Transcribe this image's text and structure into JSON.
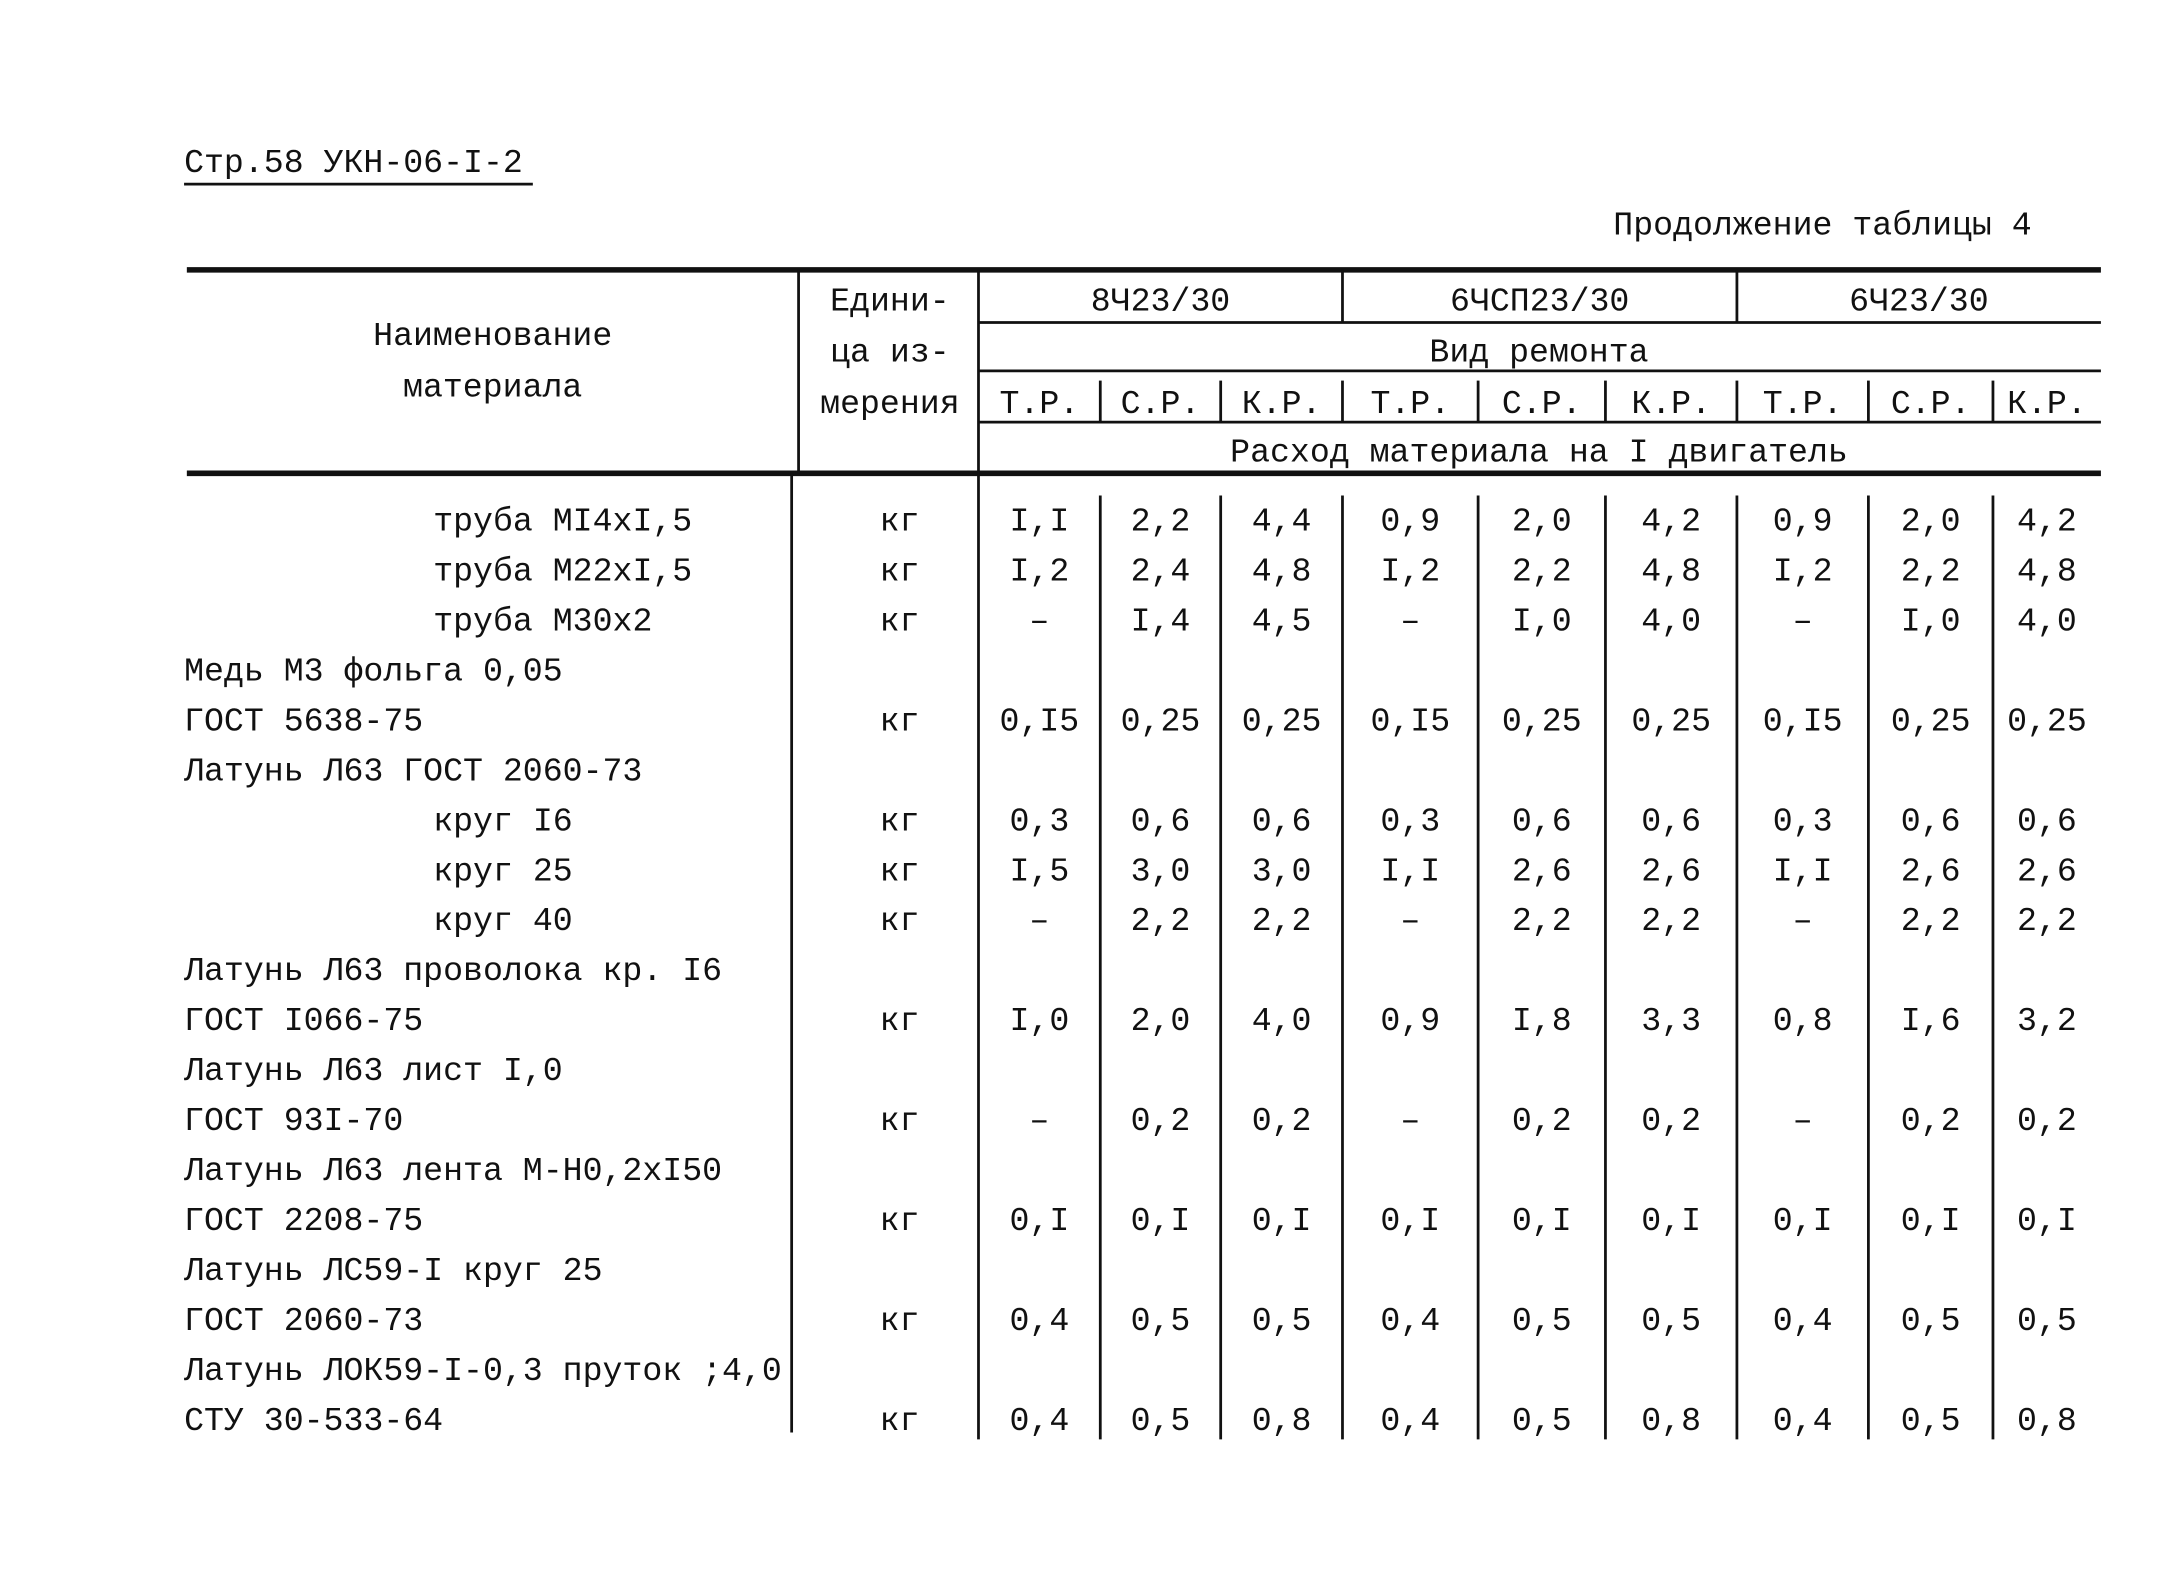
{
  "header": {
    "page_ref": "Стр.58 УКН-06-I-2",
    "continuation": "Продолжение таблицы 4"
  },
  "table": {
    "name_header": [
      "Наименование",
      "материала"
    ],
    "unit_header": [
      "Едини-",
      "ца из-",
      "мерения"
    ],
    "engines": [
      "8Ч23/30",
      "6ЧСП23/30",
      "6Ч23/30"
    ],
    "repair_header": "Вид ремонта",
    "repair_types": [
      "Т.Р.",
      "С.Р.",
      "К.Р."
    ],
    "consumption_header": "Расход материала на I двигатель",
    "rows": [
      {
        "lines": [
          "труба МI4хI,5"
        ],
        "unit": "кг",
        "values": [
          "I,I",
          "2,2",
          "4,4",
          "0,9",
          "2,0",
          "4,2",
          "0,9",
          "2,0",
          "4,2"
        ]
      },
      {
        "lines": [
          "труба М22хI,5"
        ],
        "unit": "кг",
        "values": [
          "I,2",
          "2,4",
          "4,8",
          "I,2",
          "2,2",
          "4,8",
          "I,2",
          "2,2",
          "4,8"
        ]
      },
      {
        "lines": [
          "труба М30х2"
        ],
        "unit": "кг",
        "values": [
          "–",
          "I,4",
          "4,5",
          "–",
          "I,0",
          "4,0",
          "–",
          "I,0",
          "4,0"
        ]
      },
      {
        "lines": [
          "Медь М3 фольга 0,05",
          "ГОСТ 5638-75"
        ],
        "unit": "кг",
        "values": [
          "0,I5",
          "0,25",
          "0,25",
          "0,I5",
          "0,25",
          "0,25",
          "0,I5",
          "0,25",
          "0,25"
        ]
      },
      {
        "lines": [
          "Латунь Л63 ГОСТ 2060-73"
        ]
      },
      {
        "lines": [
          "круг I6"
        ],
        "unit": "кг",
        "values": [
          "0,3",
          "0,6",
          "0,6",
          "0,3",
          "0,6",
          "0,6",
          "0,3",
          "0,6",
          "0,6"
        ]
      },
      {
        "lines": [
          "круг 25"
        ],
        "unit": "кг",
        "values": [
          "I,5",
          "3,0",
          "3,0",
          "I,I",
          "2,6",
          "2,6",
          "I,I",
          "2,6",
          "2,6"
        ]
      },
      {
        "lines": [
          "круг 40"
        ],
        "unit": "кг",
        "values": [
          "–",
          "2,2",
          "2,2",
          "–",
          "2,2",
          "2,2",
          "–",
          "2,2",
          "2,2"
        ]
      },
      {
        "lines": [
          "Латунь Л63 проволока кр. I6",
          "ГОСТ I066-75"
        ],
        "unit": "кг",
        "values": [
          "I,0",
          "2,0",
          "4,0",
          "0,9",
          "I,8",
          "3,3",
          "0,8",
          "I,6",
          "3,2"
        ]
      },
      {
        "lines": [
          "Латунь Л63 лист I,0",
          "ГОСТ 93I-70"
        ],
        "unit": "кг",
        "values": [
          "–",
          "0,2",
          "0,2",
          "–",
          "0,2",
          "0,2",
          "–",
          "0,2",
          "0,2"
        ]
      },
      {
        "lines": [
          "Латунь Л63 лента М-Н0,2хI50",
          "ГОСТ 2208-75"
        ],
        "unit": "кг",
        "values": [
          "0,I",
          "0,I",
          "0,I",
          "0,I",
          "0,I",
          "0,I",
          "0,I",
          "0,I",
          "0,I"
        ]
      },
      {
        "lines": [
          "Латунь ЛС59-I круг 25",
          "ГОСТ 2060-73"
        ],
        "unit": "кг",
        "values": [
          "0,4",
          "0,5",
          "0,5",
          "0,4",
          "0,5",
          "0,5",
          "0,4",
          "0,5",
          "0,5"
        ]
      },
      {
        "lines": [
          "Латунь ЛОК59-I-0,3 пруток ;4,0",
          "СТУ 30-533-64"
        ],
        "unit": "кг",
        "values": [
          "0,4",
          "0,5",
          "0,8",
          "0,4",
          "0,5",
          "0,8",
          "0,4",
          "0,5",
          "0,8"
        ]
      }
    ]
  }
}
